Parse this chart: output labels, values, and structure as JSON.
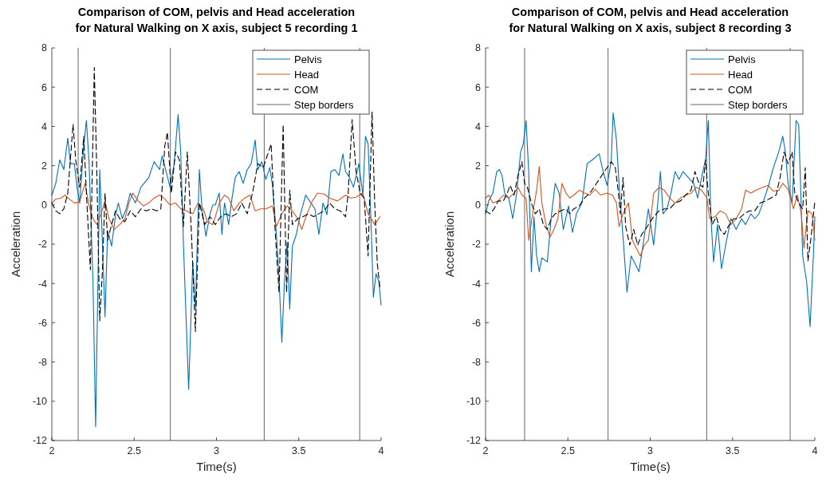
{
  "chart_data": [
    {
      "type": "line",
      "title": "Comparison of COM, pelvis and Head acceleration\nfor Natural Walking on X axis, subject 5 recording 1",
      "xlabel": "Time(s)",
      "ylabel": "Acceleration",
      "xlim": [
        2,
        4
      ],
      "ylim": [
        -12,
        8
      ],
      "xticks": [
        2,
        2.5,
        3,
        3.5,
        4
      ],
      "yticks": [
        -12,
        -10,
        -8,
        -6,
        -4,
        -2,
        0,
        2,
        4,
        6,
        8
      ],
      "legend": "top right",
      "series": [
        {
          "name": "Pelvis",
          "color": "#0072bd",
          "line_style": "solid",
          "x": [
            2.0,
            2.024,
            2.048,
            2.073,
            2.097,
            2.113,
            2.137,
            2.153,
            2.169,
            2.194,
            2.21,
            2.226,
            2.25,
            2.266,
            2.291,
            2.307,
            2.323,
            2.339,
            2.363,
            2.387,
            2.404,
            2.428,
            2.452,
            2.476,
            2.508,
            2.541,
            2.589,
            2.621,
            2.654,
            2.67,
            2.694,
            2.718,
            2.743,
            2.767,
            2.783,
            2.799,
            2.831,
            2.856,
            2.872,
            2.896,
            2.912,
            2.936,
            2.96,
            2.977,
            2.993,
            3.017,
            3.033,
            3.049,
            3.074,
            3.09,
            3.114,
            3.138,
            3.162,
            3.187,
            3.211,
            3.235,
            3.251,
            3.275,
            3.3,
            3.324,
            3.34,
            3.364,
            3.38,
            3.397,
            3.413,
            3.429,
            3.445,
            3.461,
            3.485,
            3.509,
            3.542,
            3.574,
            3.598,
            3.622,
            3.647,
            3.671,
            3.695,
            3.719,
            3.744,
            3.768,
            3.784,
            3.808,
            3.832,
            3.865,
            3.889,
            3.905,
            3.921,
            3.937,
            3.953,
            3.969,
            3.986,
            4.0
          ],
          "values": [
            0.5,
            1.1,
            2.3,
            1.8,
            3.4,
            2.1,
            2.1,
            0.9,
            0.1,
            3.0,
            4.3,
            2.2,
            -3.9,
            -11.3,
            1.8,
            -1.9,
            -5.7,
            -1.3,
            -2.1,
            -0.5,
            0.1,
            -0.7,
            -0.2,
            0.6,
            0.1,
            0.9,
            1.4,
            2.2,
            1.8,
            2.5,
            1.7,
            0.9,
            2.1,
            4.6,
            2.7,
            -1.9,
            -9.4,
            -2.9,
            -5.3,
            1.8,
            -0.2,
            -1.6,
            -0.5,
            0,
            0,
            0.6,
            -1.5,
            0.1,
            -1.0,
            0.1,
            1.4,
            1.7,
            1.1,
            1.8,
            2.1,
            3.3,
            1.8,
            2.2,
            1.3,
            1.9,
            1.0,
            -1.5,
            -3.7,
            -7.0,
            -3.9,
            -1.9,
            -5.3,
            -2.1,
            -1.5,
            -0.5,
            0.5,
            0.1,
            -0.2,
            -1.5,
            0.1,
            -0.5,
            1.7,
            1.8,
            1.5,
            2.6,
            1.7,
            1.4,
            0.9,
            2.1,
            0.5,
            3.5,
            3.1,
            -0.5,
            -4.7,
            -3.5,
            -3.9,
            -5.1
          ]
        },
        {
          "name": "Head",
          "color": "#d95319",
          "line_style": "solid",
          "x": [
            2.0,
            2.024,
            2.056,
            2.081,
            2.105,
            2.137,
            2.169,
            2.202,
            2.226,
            2.25,
            2.274,
            2.299,
            2.323,
            2.347,
            2.379,
            2.412,
            2.444,
            2.468,
            2.492,
            2.525,
            2.557,
            2.589,
            2.621,
            2.654,
            2.686,
            2.718,
            2.751,
            2.783,
            2.815,
            2.856,
            2.888,
            2.92,
            2.944,
            2.977,
            2.993,
            3.017,
            3.049,
            3.074,
            3.106,
            3.138,
            3.171,
            3.203,
            3.235,
            3.267,
            3.3,
            3.34,
            3.364,
            3.397,
            3.429,
            3.461,
            3.493,
            3.518,
            3.55,
            3.582,
            3.614,
            3.655,
            3.687,
            3.735,
            3.784,
            3.816,
            3.848,
            3.889,
            3.921,
            3.961,
            3.994
          ],
          "values": [
            0.1,
            0.3,
            0.35,
            0.5,
            0.3,
            0.1,
            0.15,
            1.1,
            -0.05,
            -0.7,
            -1.0,
            -0.45,
            0.2,
            -0.7,
            -1.25,
            -1.0,
            -0.7,
            0.1,
            0.6,
            0.2,
            -0.05,
            0.1,
            0.35,
            0.5,
            0.3,
            0.0,
            0.1,
            -0.2,
            -0.3,
            -0.45,
            0.1,
            -0.2,
            -0.85,
            -1.0,
            -0.6,
            0.1,
            0.5,
            0.35,
            -0.3,
            0.1,
            0.35,
            0.5,
            -0.3,
            -0.2,
            -0.2,
            -0.05,
            -1.1,
            -0.45,
            -0.05,
            -0.3,
            -0.7,
            -1.25,
            -0.45,
            0.2,
            0.6,
            0.55,
            0.35,
            0.2,
            0.5,
            0.35,
            0.4,
            0.6,
            -0.45,
            -1.0,
            -0.6
          ]
        },
        {
          "name": "COM",
          "color": "#000000",
          "line_style": "dashed",
          "x": [
            2.0,
            2.024,
            2.048,
            2.073,
            2.097,
            2.129,
            2.145,
            2.169,
            2.194,
            2.21,
            2.234,
            2.258,
            2.274,
            2.291,
            2.307,
            2.323,
            2.339,
            2.363,
            2.387,
            2.412,
            2.444,
            2.476,
            2.508,
            2.541,
            2.573,
            2.605,
            2.638,
            2.662,
            2.686,
            2.702,
            2.726,
            2.751,
            2.775,
            2.799,
            2.823,
            2.847,
            2.872,
            2.896,
            2.928,
            2.96,
            2.993,
            3.025,
            3.058,
            3.09,
            3.122,
            3.154,
            3.187,
            3.219,
            3.251,
            3.284,
            3.308,
            3.332,
            3.356,
            3.38,
            3.405,
            3.426,
            3.445,
            3.461,
            3.493,
            3.526,
            3.558,
            3.59,
            3.622,
            3.655,
            3.687,
            3.719,
            3.752,
            3.784,
            3.8,
            3.824,
            3.848,
            3.873,
            3.897,
            3.921,
            3.945,
            3.961,
            3.977,
            3.994
          ],
          "values": [
            0.1,
            -0.3,
            -0.45,
            -0.2,
            0.6,
            4.1,
            2.3,
            0.9,
            3.5,
            0.6,
            -3.3,
            7.0,
            1.4,
            -5.9,
            -3.4,
            0.6,
            -1.8,
            -1.0,
            -0.3,
            -0.7,
            -0.85,
            -0.3,
            -0.6,
            -0.2,
            -0.3,
            -0.2,
            -0.3,
            -0.2,
            3.0,
            3.7,
            0.6,
            2.7,
            2.3,
            -1.1,
            2.7,
            -1.25,
            -6.45,
            0.1,
            -1.0,
            -0.6,
            -1.0,
            -0.6,
            -0.45,
            -0.6,
            -0.45,
            0.1,
            -0.45,
            0.6,
            2.1,
            1.9,
            2.5,
            3.1,
            -1.25,
            -4.45,
            4.1,
            -4.45,
            0.75,
            -1.0,
            -0.7,
            -0.6,
            -0.45,
            -0.6,
            -0.45,
            -0.3,
            0.1,
            -0.2,
            -0.3,
            -0.6,
            0.6,
            4.35,
            1.7,
            0.6,
            0.35,
            -2.6,
            4.75,
            0.1,
            -3.0,
            -4.3
          ]
        }
      ],
      "ref_lines": [
        {
          "axis": "x",
          "value": 2.16,
          "label": null,
          "color": "#666666"
        },
        {
          "axis": "x",
          "value": 2.72,
          "label": null,
          "color": "#666666"
        },
        {
          "axis": "x",
          "value": 3.29,
          "label": null,
          "color": "#666666"
        },
        {
          "axis": "x",
          "value": 3.87,
          "label": "Step borders",
          "color": "#666666"
        }
      ]
    },
    {
      "type": "line",
      "title": "Comparison of COM, pelvis and Head acceleration\nfor Natural Walking on X axis, subject 8 recording 3",
      "xlabel": "Time(s)",
      "ylabel": "Acceleration",
      "xlim": [
        2,
        4
      ],
      "ylim": [
        -12,
        8
      ],
      "xticks": [
        2,
        2.5,
        3,
        3.5,
        4
      ],
      "yticks": [
        -12,
        -10,
        -8,
        -6,
        -4,
        -2,
        0,
        2,
        4,
        6,
        8
      ],
      "legend": "top right",
      "series": [
        {
          "name": "Pelvis",
          "color": "#0072bd",
          "line_style": "solid",
          "x": [
            2.0,
            2.019,
            2.044,
            2.068,
            2.084,
            2.1,
            2.116,
            2.141,
            2.165,
            2.189,
            2.213,
            2.229,
            2.246,
            2.262,
            2.278,
            2.294,
            2.31,
            2.326,
            2.342,
            2.375,
            2.399,
            2.423,
            2.447,
            2.472,
            2.504,
            2.528,
            2.552,
            2.585,
            2.617,
            2.649,
            2.69,
            2.714,
            2.738,
            2.763,
            2.775,
            2.795,
            2.811,
            2.835,
            2.859,
            2.884,
            2.908,
            2.932,
            2.956,
            2.989,
            3.021,
            3.046,
            3.062,
            3.078,
            3.102,
            3.126,
            3.151,
            3.175,
            3.199,
            3.231,
            3.264,
            3.288,
            3.312,
            3.336,
            3.353,
            3.369,
            3.385,
            3.409,
            3.433,
            3.458,
            3.49,
            3.522,
            3.555,
            3.579,
            3.611,
            3.635,
            3.66,
            3.684,
            3.716,
            3.748,
            3.781,
            3.805,
            3.821,
            3.837,
            3.862,
            3.886,
            3.902,
            3.926,
            3.95,
            3.971,
            3.991,
            4.0
          ],
          "values": [
            -0.45,
            0.2,
            0.6,
            1.7,
            1.8,
            1.5,
            0.6,
            0.35,
            -0.7,
            0.6,
            2.7,
            3.1,
            4.3,
            1.7,
            -3.4,
            -0.6,
            -2.6,
            -3.4,
            -2.7,
            -2.9,
            -0.6,
            1.1,
            0.6,
            -1.25,
            -0.05,
            -1.4,
            -0.45,
            0.1,
            2.1,
            2.3,
            2.6,
            1.7,
            1.0,
            2.2,
            4.7,
            3.3,
            1.0,
            -1.65,
            -4.45,
            -2.6,
            -3.0,
            -3.4,
            -2.05,
            -0.2,
            -2.05,
            0.1,
            1.7,
            -0.45,
            -0.2,
            0.6,
            1.7,
            1.3,
            1.7,
            1.4,
            1.1,
            0.35,
            1.4,
            2.3,
            4.3,
            -0.7,
            -2.9,
            -1.0,
            -3.25,
            -2.05,
            -0.7,
            -1.25,
            -0.7,
            -1.0,
            -0.45,
            -0.7,
            -0.45,
            0.1,
            0.9,
            1.9,
            2.7,
            3.5,
            2.7,
            1.1,
            0.1,
            4.3,
            4.1,
            -2.6,
            -3.9,
            -6.2,
            -2.6,
            -0.6
          ]
        },
        {
          "name": "Head",
          "color": "#d95319",
          "line_style": "solid",
          "x": [
            2.0,
            2.019,
            2.044,
            2.076,
            2.108,
            2.141,
            2.173,
            2.197,
            2.221,
            2.246,
            2.262,
            2.286,
            2.31,
            2.326,
            2.342,
            2.367,
            2.391,
            2.415,
            2.439,
            2.464,
            2.488,
            2.512,
            2.536,
            2.569,
            2.601,
            2.633,
            2.666,
            2.698,
            2.738,
            2.771,
            2.795,
            2.811,
            2.835,
            2.868,
            2.892,
            2.916,
            2.94,
            2.964,
            2.989,
            3.021,
            3.054,
            3.086,
            3.118,
            3.151,
            3.183,
            3.215,
            3.248,
            3.28,
            3.312,
            3.345,
            3.361,
            3.393,
            3.425,
            3.458,
            3.49,
            3.522,
            3.555,
            3.579,
            3.611,
            3.643,
            3.684,
            3.716,
            3.748,
            3.781,
            3.805,
            3.837,
            3.87,
            3.894,
            3.918,
            3.934,
            3.958,
            3.983,
            4.0
          ],
          "values": [
            0.35,
            0.5,
            0.1,
            0.2,
            0.5,
            0.35,
            0.6,
            0.9,
            0.5,
            0.35,
            -1.8,
            -0.45,
            0.75,
            1.95,
            0.1,
            -1.0,
            -1.65,
            -1.25,
            -0.7,
            1.1,
            0.6,
            0.35,
            0.5,
            0.75,
            0.6,
            0.5,
            0.8,
            0.5,
            0.6,
            0.5,
            0.1,
            -1.1,
            -0.45,
            0.1,
            -1.8,
            -2.2,
            -2.6,
            -2.05,
            -1.8,
            0.6,
            0.9,
            0.75,
            0.35,
            0.1,
            0.35,
            0.5,
            0.6,
            0.9,
            0.75,
            0.35,
            -0.7,
            -0.6,
            -0.3,
            -0.45,
            -1.0,
            -0.7,
            -0.2,
            0.75,
            0.6,
            0.75,
            0.9,
            1.0,
            0.7,
            0.75,
            1.1,
            0.8,
            -0.2,
            0.5,
            -0.45,
            -2.2,
            -0.3,
            -0.45,
            -1.8
          ]
        },
        {
          "name": "COM",
          "color": "#000000",
          "line_style": "dashed",
          "x": [
            2.0,
            2.027,
            2.052,
            2.076,
            2.108,
            2.132,
            2.149,
            2.173,
            2.197,
            2.221,
            2.237,
            2.254,
            2.278,
            2.302,
            2.326,
            2.351,
            2.375,
            2.399,
            2.423,
            2.456,
            2.488,
            2.512,
            2.536,
            2.569,
            2.601,
            2.633,
            2.666,
            2.698,
            2.73,
            2.763,
            2.787,
            2.803,
            2.819,
            2.835,
            2.851,
            2.876,
            2.9,
            2.924,
            2.948,
            2.972,
            2.989,
            3.021,
            3.054,
            3.086,
            3.118,
            3.151,
            3.183,
            3.215,
            3.248,
            3.272,
            3.296,
            3.32,
            3.336,
            3.353,
            3.377,
            3.401,
            3.425,
            3.45,
            3.474,
            3.506,
            3.538,
            3.571,
            3.603,
            3.635,
            3.668,
            3.7,
            3.732,
            3.765,
            3.789,
            3.813,
            3.837,
            3.862,
            3.878,
            3.902,
            3.926,
            3.942,
            3.958,
            3.975,
            3.999
          ],
          "values": [
            -0.3,
            -0.45,
            -0.2,
            0.2,
            0.2,
            0.6,
            1.0,
            0.5,
            1.5,
            2.2,
            1.1,
            0.9,
            0.1,
            -0.45,
            -0.2,
            -1.0,
            -1.25,
            -0.7,
            -0.45,
            -0.3,
            -0.2,
            -0.45,
            -0.2,
            -0.05,
            0.35,
            0.6,
            1.0,
            1.4,
            1.8,
            2.2,
            1.95,
            0.9,
            -0.45,
            1.4,
            -1.1,
            -2.05,
            -1.25,
            -2.05,
            -1.5,
            -1.25,
            -1.0,
            -0.6,
            -0.3,
            -0.2,
            -0.2,
            0.1,
            0.2,
            0.5,
            0.75,
            1.7,
            1.1,
            0.9,
            2.3,
            0.6,
            -1.0,
            -0.6,
            -1.25,
            -1.5,
            -1.1,
            -0.7,
            -0.7,
            -0.45,
            -0.3,
            -0.3,
            0.1,
            0.2,
            0.35,
            0.5,
            1.4,
            2.7,
            2.1,
            2.7,
            0.6,
            0.1,
            -0.2,
            1.9,
            -2.85,
            -1.8,
            0.1
          ]
        }
      ],
      "ref_lines": [
        {
          "axis": "x",
          "value": 2.237,
          "label": null,
          "color": "#666666"
        },
        {
          "axis": "x",
          "value": 2.744,
          "label": null,
          "color": "#666666"
        },
        {
          "axis": "x",
          "value": 3.343,
          "label": null,
          "color": "#666666"
        },
        {
          "axis": "x",
          "value": 3.85,
          "label": "Step borders",
          "color": "#666666"
        }
      ]
    }
  ]
}
